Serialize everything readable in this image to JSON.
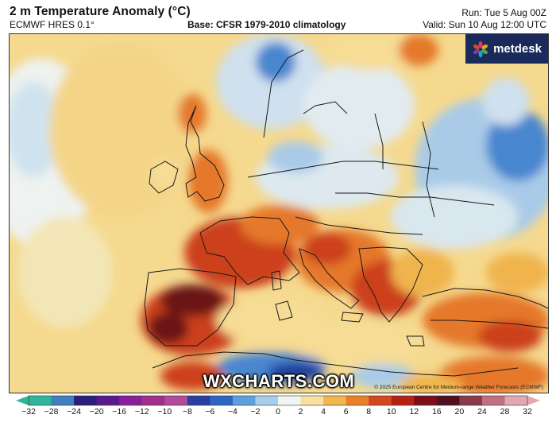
{
  "header": {
    "title": "2 m Temperature Anomaly (°C)",
    "model": "ECMWF HRES 0.1°",
    "base": "Base: CFSR 1979-2010 climatology",
    "run": "Run: Tue 5 Aug 00Z",
    "valid": "Valid: Sun 10 Aug 12:00 UTC"
  },
  "logo": {
    "text": "metdesk",
    "icon": "metdesk-flower-icon",
    "color": "#1a2a5b"
  },
  "watermark": "WXCHARTS.COM",
  "copyright": "© 2025 European Centre for Medium-range Weather Forecasts (ECMWF)",
  "legend": {
    "ticks": [
      {
        "label": "−32",
        "value": -32
      },
      {
        "label": "−28",
        "value": -28
      },
      {
        "label": "−24",
        "value": -24
      },
      {
        "label": "−20",
        "value": -20
      },
      {
        "label": "−16",
        "value": -16
      },
      {
        "label": "−12",
        "value": -12
      },
      {
        "label": "−10",
        "value": -10
      },
      {
        "label": "−8",
        "value": -8
      },
      {
        "label": "−6",
        "value": -6
      },
      {
        "label": "−4",
        "value": -4
      },
      {
        "label": "−2",
        "value": -2
      },
      {
        "label": "0",
        "value": 0
      },
      {
        "label": "2",
        "value": 2
      },
      {
        "label": "4",
        "value": 4
      },
      {
        "label": "6",
        "value": 6
      },
      {
        "label": "8",
        "value": 8
      },
      {
        "label": "10",
        "value": 10
      },
      {
        "label": "12",
        "value": 12
      },
      {
        "label": "16",
        "value": 16
      },
      {
        "label": "20",
        "value": 20
      },
      {
        "label": "24",
        "value": 24
      },
      {
        "label": "28",
        "value": 28
      },
      {
        "label": "32",
        "value": 32
      }
    ],
    "colors": [
      "#2fb59a",
      "#3f7fbf",
      "#2a1f7a",
      "#5a1a8a",
      "#8a1f9a",
      "#a0308a",
      "#b34a9a",
      "#2a3fa0",
      "#2f66c4",
      "#5f9fdc",
      "#a8cdea",
      "#f2f4f2",
      "#f7e0a0",
      "#f2b650",
      "#e8822a",
      "#d4461e",
      "#b52214",
      "#7a0f1a",
      "#501020",
      "#8a3a4a",
      "#c07080",
      "#e0a8b0"
    ],
    "colormap": {
      "deep_cold": "#1f3f9a",
      "cold": "#4a86d0",
      "cool": "#a9cbe8",
      "neutral": "#eef2f0",
      "mild": "#f6dc94",
      "warm": "#f0b44e",
      "hot": "#e5782a",
      "very_hot": "#cc3f1c",
      "extreme": "#6a1418"
    }
  }
}
